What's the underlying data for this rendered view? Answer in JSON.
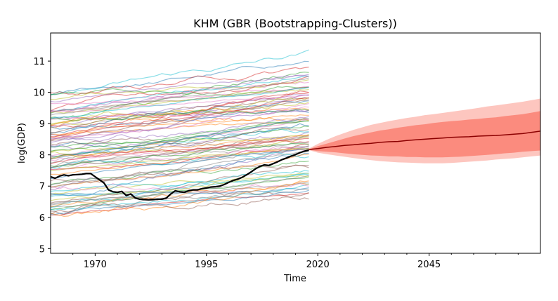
{
  "chart_data": {
    "type": "line",
    "title": "KHM (GBR (Bootstrapping-Clusters))",
    "xlabel": "Time",
    "ylabel": "log(GDP)",
    "xlim": [
      1960,
      2070
    ],
    "ylim": [
      4.85,
      11.9
    ],
    "x_ticks": [
      1970,
      1995,
      2020,
      2045
    ],
    "x_tick_labels": [
      "1970",
      "1995",
      "2020",
      "2045"
    ],
    "y_ticks": [
      5,
      6,
      7,
      8,
      9,
      10,
      11
    ],
    "y_tick_labels": [
      "5",
      "6",
      "7",
      "8",
      "9",
      "10",
      "11"
    ],
    "grid": false,
    "history_years": [
      1960,
      2018
    ],
    "background_series_count": 90,
    "main_series": {
      "color": "#000000",
      "points": [
        [
          1960,
          7.3
        ],
        [
          1961,
          7.25
        ],
        [
          1962,
          7.32
        ],
        [
          1963,
          7.36
        ],
        [
          1964,
          7.33
        ],
        [
          1965,
          7.36
        ],
        [
          1966,
          7.37
        ],
        [
          1967,
          7.38
        ],
        [
          1968,
          7.4
        ],
        [
          1969,
          7.4
        ],
        [
          1970,
          7.3
        ],
        [
          1971,
          7.2
        ],
        [
          1972,
          7.1
        ],
        [
          1973,
          6.88
        ],
        [
          1974,
          6.82
        ],
        [
          1975,
          6.8
        ],
        [
          1976,
          6.83
        ],
        [
          1977,
          6.7
        ],
        [
          1978,
          6.75
        ],
        [
          1979,
          6.62
        ],
        [
          1980,
          6.58
        ],
        [
          1981,
          6.57
        ],
        [
          1982,
          6.56
        ],
        [
          1983,
          6.57
        ],
        [
          1984,
          6.58
        ],
        [
          1985,
          6.58
        ],
        [
          1986,
          6.62
        ],
        [
          1987,
          6.75
        ],
        [
          1988,
          6.85
        ],
        [
          1989,
          6.82
        ],
        [
          1990,
          6.8
        ],
        [
          1991,
          6.85
        ],
        [
          1992,
          6.88
        ],
        [
          1993,
          6.88
        ],
        [
          1994,
          6.92
        ],
        [
          1995,
          6.94
        ],
        [
          1996,
          6.97
        ],
        [
          1997,
          6.98
        ],
        [
          1998,
          7.0
        ],
        [
          1999,
          7.05
        ],
        [
          2000,
          7.12
        ],
        [
          2001,
          7.18
        ],
        [
          2002,
          7.22
        ],
        [
          2003,
          7.28
        ],
        [
          2004,
          7.36
        ],
        [
          2005,
          7.45
        ],
        [
          2006,
          7.55
        ],
        [
          2007,
          7.63
        ],
        [
          2008,
          7.68
        ],
        [
          2009,
          7.66
        ],
        [
          2010,
          7.72
        ],
        [
          2011,
          7.78
        ],
        [
          2012,
          7.85
        ],
        [
          2013,
          7.9
        ],
        [
          2014,
          7.96
        ],
        [
          2015,
          8.01
        ],
        [
          2016,
          8.07
        ],
        [
          2017,
          8.12
        ],
        [
          2018,
          8.15
        ]
      ]
    },
    "forecast": {
      "line_color": "#8b0000",
      "band_color": "#fa8072",
      "years": [
        2018,
        2020,
        2022,
        2024,
        2026,
        2028,
        2030,
        2032,
        2034,
        2036,
        2038,
        2040,
        2042,
        2044,
        2046,
        2048,
        2050,
        2052,
        2054,
        2056,
        2058,
        2060,
        2062,
        2064,
        2066,
        2068,
        2070
      ],
      "median": [
        8.17,
        8.2,
        8.24,
        8.27,
        8.3,
        8.32,
        8.35,
        8.37,
        8.4,
        8.42,
        8.43,
        8.46,
        8.48,
        8.5,
        8.52,
        8.54,
        8.56,
        8.57,
        8.58,
        8.6,
        8.61,
        8.62,
        8.64,
        8.66,
        8.68,
        8.72,
        8.76
      ],
      "inner_low": [
        8.16,
        8.12,
        8.1,
        8.08,
        8.05,
        8.02,
        8.0,
        7.98,
        7.97,
        7.95,
        7.95,
        7.93,
        7.93,
        7.92,
        7.92,
        7.92,
        7.93,
        7.94,
        7.96,
        7.98,
        8.0,
        8.02,
        8.05,
        8.07,
        8.1,
        8.12,
        8.14
      ],
      "inner_high": [
        8.18,
        8.28,
        8.36,
        8.44,
        8.52,
        8.6,
        8.66,
        8.72,
        8.78,
        8.82,
        8.87,
        8.91,
        8.95,
        8.98,
        9.02,
        9.05,
        9.08,
        9.1,
        9.13,
        9.15,
        9.18,
        9.2,
        9.24,
        9.27,
        9.3,
        9.35,
        9.4
      ],
      "outer_low": [
        8.15,
        8.07,
        8.02,
        7.98,
        7.94,
        7.9,
        7.86,
        7.83,
        7.8,
        7.78,
        7.76,
        7.75,
        7.74,
        7.73,
        7.73,
        7.73,
        7.74,
        7.76,
        7.78,
        7.8,
        7.82,
        7.85,
        7.87,
        7.89,
        7.92,
        7.95,
        7.98
      ],
      "outer_high": [
        8.2,
        8.35,
        8.48,
        8.6,
        8.7,
        8.8,
        8.88,
        8.96,
        9.02,
        9.08,
        9.13,
        9.18,
        9.22,
        9.27,
        9.3,
        9.34,
        9.38,
        9.42,
        9.46,
        9.5,
        9.55,
        9.58,
        9.62,
        9.66,
        9.7,
        9.75,
        9.8
      ]
    }
  }
}
